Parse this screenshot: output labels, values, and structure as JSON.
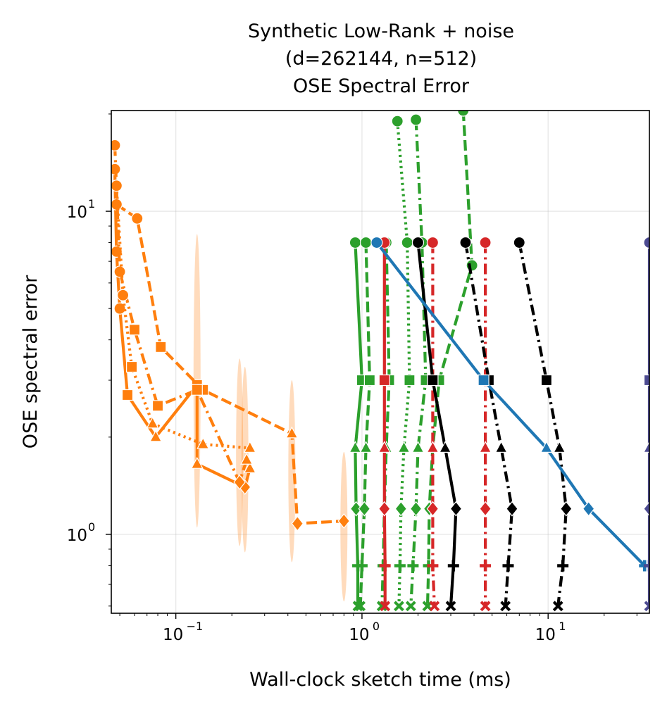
{
  "chart_data": {
    "type": "line",
    "title": [
      "Synthetic Low-Rank + noise",
      "(d=262144, n=512)",
      "OSE Spectral Error"
    ],
    "xlabel": "Wall-clock sketch time (ms)",
    "ylabel": "OSE spectral error",
    "xscale": "log",
    "yscale": "log",
    "xlim": [
      0.045,
      35
    ],
    "ylim": [
      0.57,
      20.5
    ],
    "xticks": [
      {
        "value": 0.1,
        "base": "10",
        "exp": "−1"
      },
      {
        "value": 1,
        "base": "10",
        "exp": "0"
      },
      {
        "value": 10,
        "base": "10",
        "exp": "1"
      }
    ],
    "yticks": [
      {
        "value": 1,
        "base": "10",
        "exp": "0"
      },
      {
        "value": 10,
        "base": "10",
        "exp": "1"
      }
    ],
    "grid": true,
    "legend": "none",
    "colors": {
      "orange": "#ff7f0e",
      "green": "#2ca02c",
      "red": "#d62728",
      "black": "#000000",
      "blue": "#1f77b4",
      "purple": "#4c4a91"
    },
    "y_levels": [
      20,
      8,
      3,
      1.87,
      1.2,
      0.8,
      0.6
    ],
    "markers": [
      "circle",
      "circle",
      "square",
      "triangle",
      "diamond",
      "plus",
      "x"
    ],
    "bands": [
      {
        "x": 0.13,
        "ylow": 1.05,
        "yhigh": 8.5
      },
      {
        "x": 0.22,
        "ylow": 0.92,
        "yhigh": 3.5
      },
      {
        "x": 0.235,
        "ylow": 0.88,
        "yhigh": 3.3
      },
      {
        "x": 0.42,
        "ylow": 0.82,
        "yhigh": 3.0
      },
      {
        "x": 0.8,
        "ylow": 0.62,
        "yhigh": 1.8
      }
    ],
    "series": [
      {
        "color": "orange",
        "dash": "solid",
        "points": [
          [
            0.047,
            13.5
          ],
          [
            0.048,
            7.5
          ],
          [
            0.05,
            5.0
          ],
          [
            0.055,
            2.7
          ],
          [
            0.078,
            2.0
          ],
          [
            0.13,
            2.9
          ],
          [
            0.13,
            1.65
          ],
          [
            0.235,
            1.4
          ],
          [
            0.25,
            1.6
          ]
        ]
      },
      {
        "color": "orange",
        "dash": "dash",
        "points": [
          [
            0.048,
            10.5
          ],
          [
            0.062,
            9.5
          ],
          [
            0.083,
            3.8
          ],
          [
            0.14,
            2.8
          ],
          [
            0.42,
            2.05
          ],
          [
            0.45,
            1.08
          ],
          [
            0.8,
            1.1
          ]
        ]
      },
      {
        "color": "orange",
        "dash": "dashdot",
        "points": [
          [
            0.047,
            16.0
          ],
          [
            0.05,
            6.5
          ],
          [
            0.06,
            4.3
          ],
          [
            0.08,
            2.5
          ],
          [
            0.13,
            2.8
          ],
          [
            0.22,
            1.45
          ],
          [
            0.24,
            1.7
          ]
        ]
      },
      {
        "color": "orange",
        "dash": "dot",
        "points": [
          [
            0.048,
            12.0
          ],
          [
            0.052,
            5.5
          ],
          [
            0.058,
            3.3
          ],
          [
            0.075,
            2.2
          ],
          [
            0.14,
            1.9
          ],
          [
            0.25,
            1.85
          ]
        ]
      },
      {
        "color": "green",
        "dash": "solid",
        "points": [
          [
            0.92,
            8.0
          ],
          [
            1.0,
            3.0
          ],
          [
            0.92,
            1.85
          ],
          [
            0.93,
            1.2
          ],
          [
            0.95,
            0.8
          ],
          [
            0.95,
            0.6
          ]
        ]
      },
      {
        "color": "green",
        "dash": "dash",
        "points": [
          [
            1.05,
            8.0
          ],
          [
            1.1,
            3.0
          ],
          [
            1.05,
            1.85
          ],
          [
            1.03,
            1.2
          ],
          [
            1.0,
            0.8
          ],
          [
            0.98,
            0.6
          ]
        ]
      },
      {
        "color": "green",
        "dash": "dashdot",
        "points": [
          [
            1.35,
            8.0
          ],
          [
            1.4,
            3.0
          ],
          [
            1.35,
            1.85
          ],
          [
            1.32,
            1.2
          ],
          [
            1.3,
            0.8
          ],
          [
            1.28,
            0.6
          ]
        ]
      },
      {
        "color": "green",
        "dash": "dot",
        "points": [
          [
            1.55,
            19.0
          ],
          [
            1.75,
            8.0
          ],
          [
            1.8,
            3.0
          ],
          [
            1.68,
            1.85
          ],
          [
            1.62,
            1.2
          ],
          [
            1.6,
            0.8
          ],
          [
            1.58,
            0.6
          ]
        ]
      },
      {
        "color": "green",
        "dash": "dashdot",
        "points": [
          [
            1.95,
            19.2
          ],
          [
            2.1,
            8.0
          ],
          [
            2.2,
            3.0
          ],
          [
            2.0,
            1.85
          ],
          [
            1.95,
            1.2
          ],
          [
            1.88,
            0.8
          ],
          [
            1.83,
            0.6
          ]
        ]
      },
      {
        "color": "green",
        "dash": "dash",
        "points": [
          [
            3.5,
            20.5
          ],
          [
            3.9,
            6.8
          ],
          [
            2.6,
            3.0
          ],
          [
            2.4,
            1.85
          ],
          [
            2.3,
            1.2
          ],
          [
            2.28,
            0.8
          ],
          [
            2.25,
            0.6
          ]
        ]
      },
      {
        "color": "red",
        "dash": "solid",
        "points": [
          [
            1.32,
            8.0
          ],
          [
            1.32,
            3.0
          ],
          [
            1.32,
            1.85
          ],
          [
            1.32,
            1.2
          ],
          [
            1.33,
            0.8
          ],
          [
            1.33,
            0.6
          ]
        ]
      },
      {
        "color": "red",
        "dash": "dashdot",
        "points": [
          [
            2.4,
            8.0
          ],
          [
            2.4,
            3.0
          ],
          [
            2.4,
            1.85
          ],
          [
            2.4,
            1.2
          ],
          [
            2.4,
            0.8
          ],
          [
            2.45,
            0.6
          ]
        ]
      },
      {
        "color": "red",
        "dash": "dashdot",
        "points": [
          [
            4.6,
            8.0
          ],
          [
            4.6,
            3.0
          ],
          [
            4.6,
            1.85
          ],
          [
            4.6,
            1.2
          ],
          [
            4.6,
            0.8
          ],
          [
            4.6,
            0.6
          ]
        ]
      },
      {
        "color": "black",
        "dash": "solid",
        "points": [
          [
            2.0,
            8.0
          ],
          [
            2.4,
            3.0
          ],
          [
            2.8,
            1.85
          ],
          [
            3.2,
            1.2
          ],
          [
            3.1,
            0.8
          ],
          [
            3.0,
            0.6
          ]
        ]
      },
      {
        "color": "black",
        "dash": "dashdot",
        "points": [
          [
            3.6,
            8.0
          ],
          [
            4.8,
            3.0
          ],
          [
            5.6,
            1.85
          ],
          [
            6.4,
            1.2
          ],
          [
            6.1,
            0.8
          ],
          [
            5.9,
            0.6
          ]
        ]
      },
      {
        "color": "black",
        "dash": "dashdot",
        "points": [
          [
            7.0,
            8.0
          ],
          [
            9.8,
            3.0
          ],
          [
            11.5,
            1.85
          ],
          [
            12.5,
            1.2
          ],
          [
            12.0,
            0.8
          ],
          [
            11.3,
            0.6
          ]
        ]
      },
      {
        "color": "blue",
        "dash": "solid",
        "points": [
          [
            1.2,
            8.0
          ],
          [
            4.5,
            3.0
          ],
          [
            9.8,
            1.85
          ],
          [
            16.5,
            1.2
          ],
          [
            33.0,
            0.8
          ]
        ]
      },
      {
        "color": "purple",
        "dash": "solid",
        "points": [
          [
            35.0,
            8.0
          ],
          [
            35.0,
            3.0
          ],
          [
            35.0,
            1.85
          ],
          [
            35.0,
            1.2
          ],
          [
            35.0,
            0.8
          ],
          [
            35.0,
            0.6
          ]
        ]
      }
    ]
  }
}
